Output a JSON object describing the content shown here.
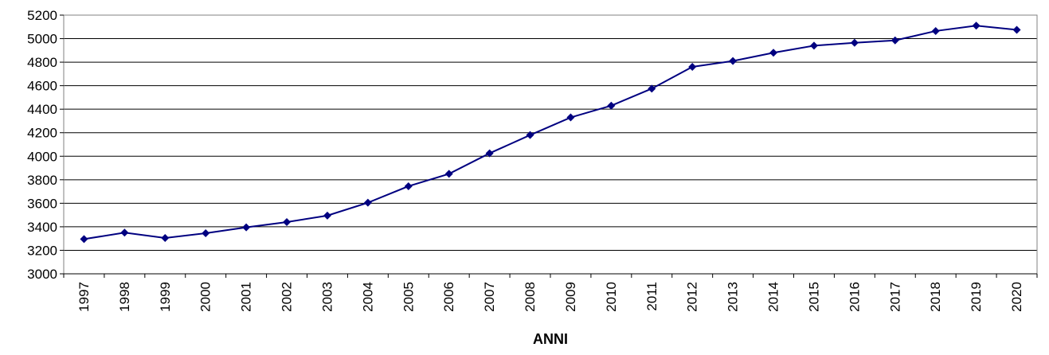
{
  "chart_data": {
    "type": "line",
    "title": "",
    "xlabel": "ANNI",
    "ylabel": "",
    "ylim": [
      3000,
      5200
    ],
    "yticks": [
      3000,
      3200,
      3400,
      3600,
      3800,
      4000,
      4200,
      4400,
      4600,
      4800,
      5000,
      5200
    ],
    "grid": "horizontal",
    "legend": "none",
    "categories": [
      "1997",
      "1998",
      "1999",
      "2000",
      "2001",
      "2002",
      "2003",
      "2004",
      "2005",
      "2006",
      "2007",
      "2008",
      "2009",
      "2010",
      "2011",
      "2012",
      "2013",
      "2014",
      "2015",
      "2016",
      "2017",
      "2018",
      "2019",
      "2020"
    ],
    "series": [
      {
        "color": "#000080",
        "marker": "diamond",
        "values": [
          3295,
          3350,
          3305,
          3345,
          3395,
          3440,
          3495,
          3605,
          3745,
          3850,
          4025,
          4180,
          4330,
          4430,
          4575,
          4760,
          4810,
          4880,
          4940,
          4965,
          4985,
          5065,
          5110,
          5075
        ]
      }
    ]
  }
}
